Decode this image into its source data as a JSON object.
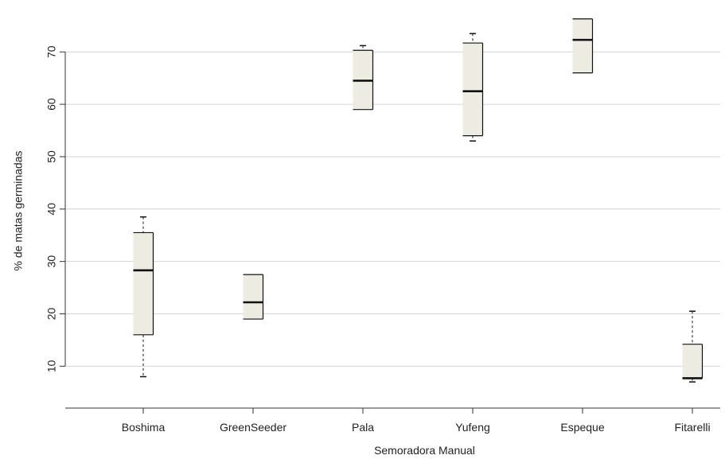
{
  "chart_data": {
    "type": "box",
    "title": "",
    "xlabel": "Semoradora Manual",
    "ylabel": "% de matas germinadas",
    "ylim": [
      2,
      79
    ],
    "y_ticks": [
      10,
      20,
      30,
      40,
      50,
      60,
      70
    ],
    "y_tick_labels": [
      "10",
      "20",
      "30",
      "40",
      "50",
      "60",
      "70"
    ],
    "grid": "horizontal",
    "categories": [
      "Boshima",
      "GreenSeeder",
      "Pala",
      "Yufeng",
      "Espeque",
      "Fitarelli"
    ],
    "boxes": [
      {
        "category": "Boshima",
        "whisker_low": 8,
        "q1": 16,
        "median": 28.3,
        "q3": 35.5,
        "whisker_high": 38.5
      },
      {
        "category": "GreenSeeder",
        "whisker_low": 19,
        "q1": 19,
        "median": 22.2,
        "q3": 27.5,
        "whisker_high": 27.5
      },
      {
        "category": "Pala",
        "whisker_low": 59,
        "q1": 59,
        "median": 64.5,
        "q3": 70.3,
        "whisker_high": 71.2
      },
      {
        "category": "Yufeng",
        "whisker_low": 53,
        "q1": 54,
        "median": 62.5,
        "q3": 71.7,
        "whisker_high": 73.5
      },
      {
        "category": "Espeque",
        "whisker_low": 66,
        "q1": 66,
        "median": 72.3,
        "q3": 76.3,
        "whisker_high": 76.3
      },
      {
        "category": "Fitarelli",
        "whisker_low": 7,
        "q1": 7.7,
        "median": 7.7,
        "q3": 14.2,
        "whisker_high": 20.5
      }
    ],
    "colors": {
      "box_fill": "#ecece2",
      "line": "#111111",
      "grid": "#d4d4d4",
      "axis": "#333333"
    }
  }
}
